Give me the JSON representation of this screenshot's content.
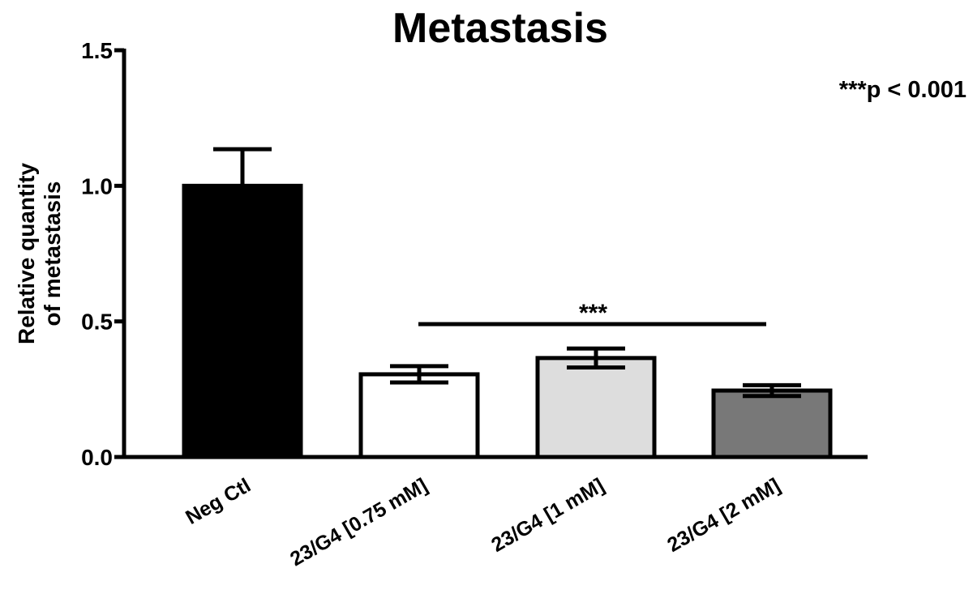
{
  "chart_data": {
    "type": "bar",
    "title": "Metastasis",
    "xlabel": "",
    "ylabel_lines": [
      "Relative quantity",
      "of metastasis"
    ],
    "ylim": [
      0,
      1.5
    ],
    "yticks": [
      {
        "value": 0.0,
        "label": "0.0"
      },
      {
        "value": 0.5,
        "label": "0.5"
      },
      {
        "value": 1.0,
        "label": "1.0"
      },
      {
        "value": 1.5,
        "label": "1.5"
      }
    ],
    "categories": [
      "Neg Ctl",
      "23/G4 [0.75 mM]",
      "23/G4 [1 mM]",
      "23/G4 [2 mM]"
    ],
    "values": [
      1.0,
      0.305,
      0.365,
      0.245
    ],
    "errors": [
      0.135,
      0.03,
      0.035,
      0.02
    ],
    "bar_colors": [
      "#000000",
      "#ffffff",
      "#dddddd",
      "#787878"
    ],
    "grid": false,
    "annotations": {
      "significance_marker": "***",
      "significance_span": [
        "23/G4 [0.75 mM]",
        "23/G4 [2 mM]"
      ],
      "significance_level": 0.49,
      "legend_note": "***p < 0.001",
      "legend_note_position": "top-right"
    }
  }
}
